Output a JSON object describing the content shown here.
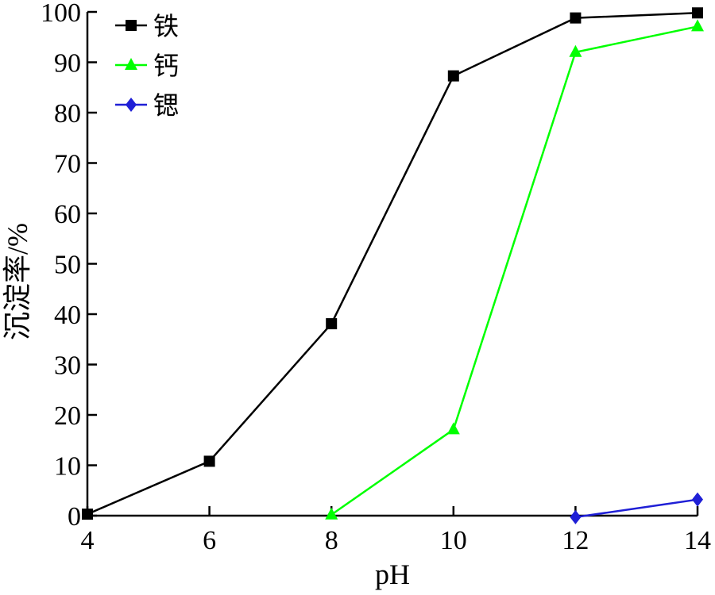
{
  "chart_data": {
    "type": "line",
    "xlabel": "pH",
    "ylabel": "沉淀率/%",
    "xlim": [
      4,
      14
    ],
    "ylim": [
      0,
      100
    ],
    "xticks": [
      4,
      6,
      8,
      10,
      12,
      14
    ],
    "yticks": [
      0,
      10,
      20,
      30,
      40,
      50,
      60,
      70,
      80,
      90,
      100
    ],
    "grid": false,
    "legend_position": "top-left",
    "series": [
      {
        "name": "铁",
        "color": "#000000",
        "marker": "square",
        "x": [
          4,
          6,
          8,
          10,
          12,
          14
        ],
        "y": [
          0.3,
          10.8,
          38.1,
          87.3,
          98.8,
          99.8
        ]
      },
      {
        "name": "钙",
        "color": "#00ff00",
        "marker": "triangle",
        "x": [
          8,
          10,
          12,
          14
        ],
        "y": [
          0.2,
          17.1,
          92.0,
          97.1
        ]
      },
      {
        "name": "锶",
        "color": "#1f1fd6",
        "marker": "diamond",
        "x": [
          12,
          14
        ],
        "y": [
          -0.3,
          3.2
        ]
      }
    ]
  }
}
